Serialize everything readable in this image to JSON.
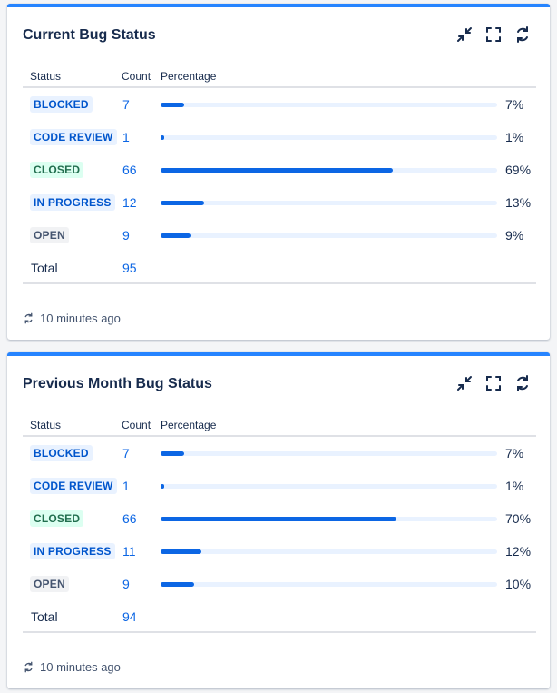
{
  "colors": {
    "accent": "#2684ff",
    "bar": "#0c66e4",
    "bar_track": "#e9f2ff",
    "link": "#0c66e4"
  },
  "gadgets": [
    {
      "title": "Current Bug Status",
      "actions": [
        "minimize-icon",
        "fullscreen-icon",
        "refresh-icon"
      ],
      "columns": {
        "status": "Status",
        "count": "Count",
        "percentage": "Percentage"
      },
      "rows": [
        {
          "status": "BLOCKED",
          "style": "blue",
          "count": "7",
          "percent": 7,
          "percent_label": "7%"
        },
        {
          "status": "CODE REVIEW",
          "style": "blue",
          "count": "1",
          "percent": 1,
          "percent_label": "1%"
        },
        {
          "status": "CLOSED",
          "style": "green",
          "count": "66",
          "percent": 69,
          "percent_label": "69%"
        },
        {
          "status": "IN PROGRESS",
          "style": "blue",
          "count": "12",
          "percent": 13,
          "percent_label": "13%"
        },
        {
          "status": "OPEN",
          "style": "grey",
          "count": "9",
          "percent": 9,
          "percent_label": "9%"
        }
      ],
      "total_label": "Total",
      "total_count": "95",
      "updated": "10 minutes ago"
    },
    {
      "title": "Previous Month Bug Status",
      "actions": [
        "minimize-icon",
        "fullscreen-icon",
        "refresh-icon"
      ],
      "columns": {
        "status": "Status",
        "count": "Count",
        "percentage": "Percentage"
      },
      "rows": [
        {
          "status": "BLOCKED",
          "style": "blue",
          "count": "7",
          "percent": 7,
          "percent_label": "7%"
        },
        {
          "status": "CODE REVIEW",
          "style": "blue",
          "count": "1",
          "percent": 1,
          "percent_label": "1%"
        },
        {
          "status": "CLOSED",
          "style": "green",
          "count": "66",
          "percent": 70,
          "percent_label": "70%"
        },
        {
          "status": "IN PROGRESS",
          "style": "blue",
          "count": "11",
          "percent": 12,
          "percent_label": "12%"
        },
        {
          "status": "OPEN",
          "style": "grey",
          "count": "9",
          "percent": 10,
          "percent_label": "10%"
        }
      ],
      "total_label": "Total",
      "total_count": "94",
      "updated": "10 minutes ago"
    }
  ]
}
